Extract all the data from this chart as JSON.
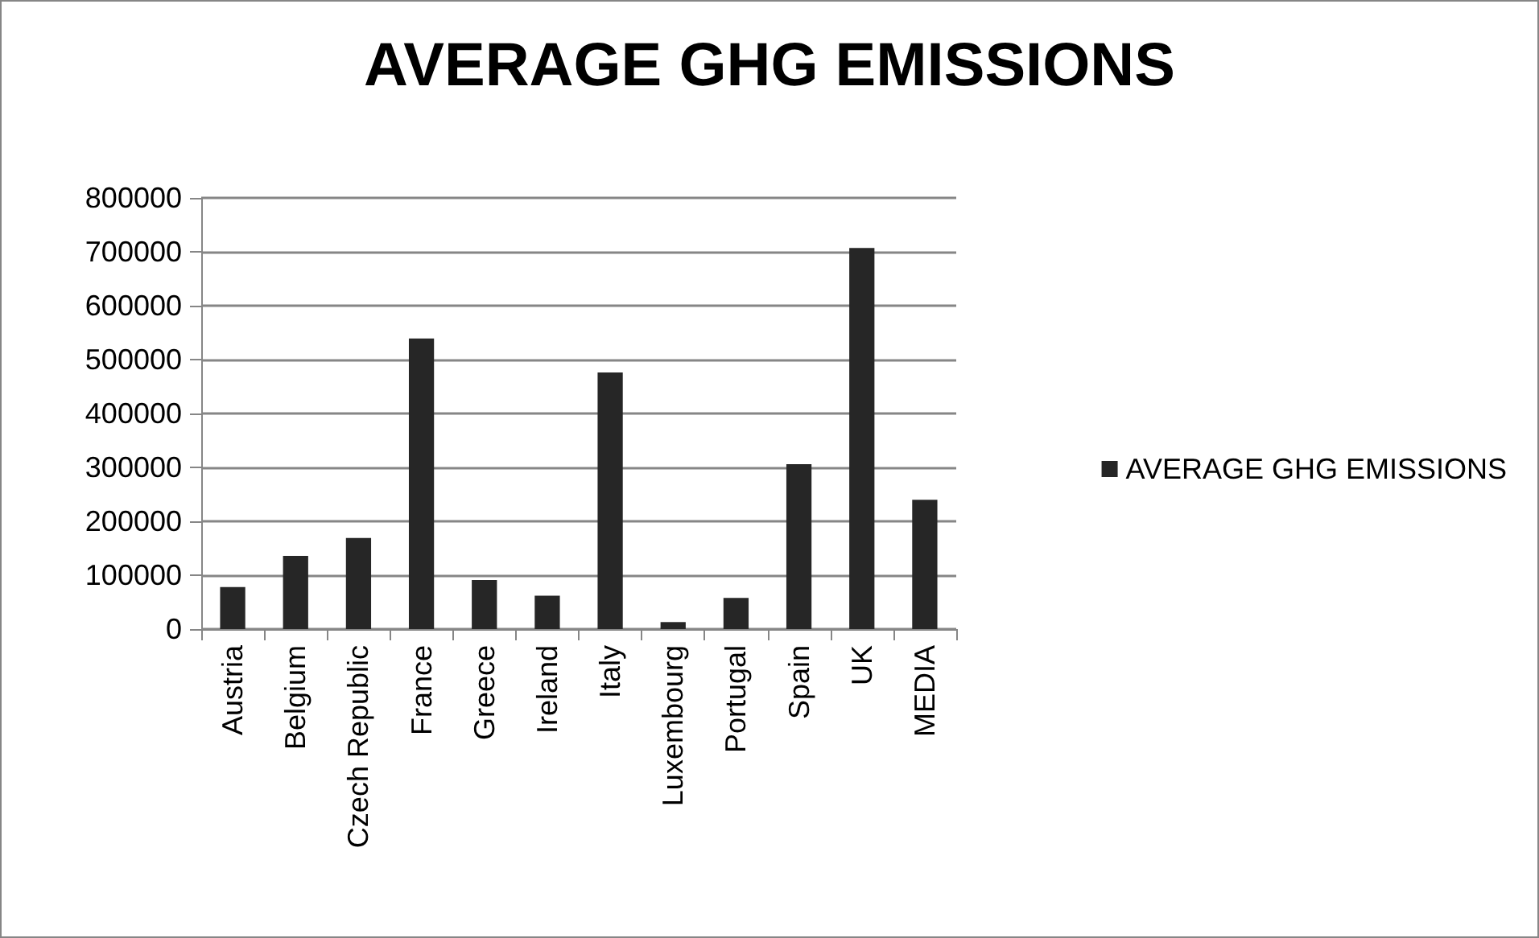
{
  "chart_data": {
    "type": "bar",
    "title": "AVERAGE GHG EMISSIONS",
    "categories": [
      "Austria",
      "Belgium",
      "Czech Republic",
      "France",
      "Greece",
      "Ireland",
      "Italy",
      "Luxembourg",
      "Portugal",
      "Spain",
      "UK",
      "MEDIA"
    ],
    "series": [
      {
        "name": "AVERAGE GHG EMISSIONS",
        "color": "#262626",
        "values": [
          78000,
          136000,
          169000,
          539000,
          91000,
          62000,
          476000,
          13000,
          58000,
          306000,
          707000,
          240000
        ]
      }
    ],
    "ylim": [
      0,
      800000
    ],
    "yticks": [
      0,
      100000,
      200000,
      300000,
      400000,
      500000,
      600000,
      700000,
      800000
    ],
    "grid": "y",
    "legend": "right"
  }
}
